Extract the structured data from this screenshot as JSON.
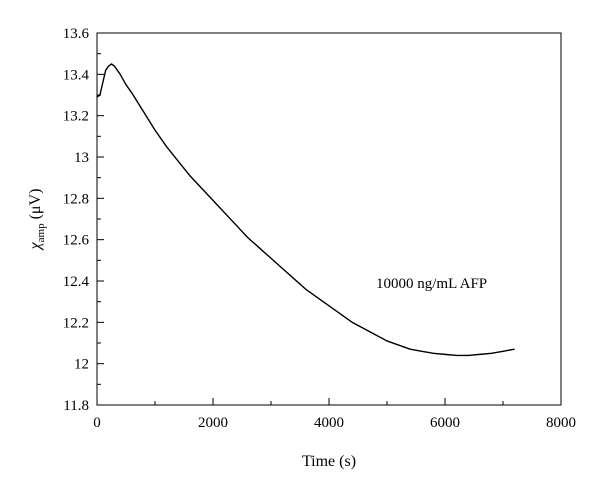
{
  "chart_data": {
    "type": "line",
    "xlabel": "Time (s)",
    "ylabel": {
      "symbol": "χ",
      "subscript": "amp",
      "unit": "(μV)"
    },
    "xlim": [
      0,
      8000
    ],
    "ylim": [
      11.8,
      13.6
    ],
    "xticks": [
      0,
      2000,
      4000,
      6000,
      8000
    ],
    "xtick_labels": [
      "0",
      "2000",
      "4000",
      "6000",
      "8000"
    ],
    "yticks": [
      11.8,
      12,
      12.2,
      12.4,
      12.6,
      12.8,
      13,
      13.2,
      13.4,
      13.6
    ],
    "ytick_labels": [
      "11.8",
      "12",
      "12.2",
      "12.4",
      "12.6",
      "12.8",
      "13",
      "13.2",
      "13.4",
      "13.6"
    ],
    "grid": false,
    "annotation": "10000 ng/mL AFP",
    "series": [
      {
        "x": [
          0,
          50,
          100,
          150,
          200,
          250,
          300,
          350,
          400,
          500,
          600,
          800,
          1000,
          1200,
          1400,
          1600,
          1800,
          2000,
          2200,
          2400,
          2600,
          2800,
          3000,
          3200,
          3400,
          3600,
          3800,
          4000,
          4200,
          4400,
          4600,
          4800,
          5000,
          5200,
          5400,
          5600,
          5800,
          6000,
          6200,
          6400,
          6600,
          6800,
          7000,
          7200
        ],
        "y": [
          13.29,
          13.3,
          13.36,
          13.42,
          13.44,
          13.45,
          13.44,
          13.42,
          13.4,
          13.35,
          13.31,
          13.22,
          13.13,
          13.05,
          12.98,
          12.91,
          12.85,
          12.79,
          12.73,
          12.67,
          12.61,
          12.56,
          12.51,
          12.46,
          12.41,
          12.36,
          12.32,
          12.28,
          12.24,
          12.2,
          12.17,
          12.14,
          12.11,
          12.09,
          12.07,
          12.06,
          12.05,
          12.045,
          12.04,
          12.04,
          12.045,
          12.05,
          12.06,
          12.07
        ]
      }
    ]
  }
}
